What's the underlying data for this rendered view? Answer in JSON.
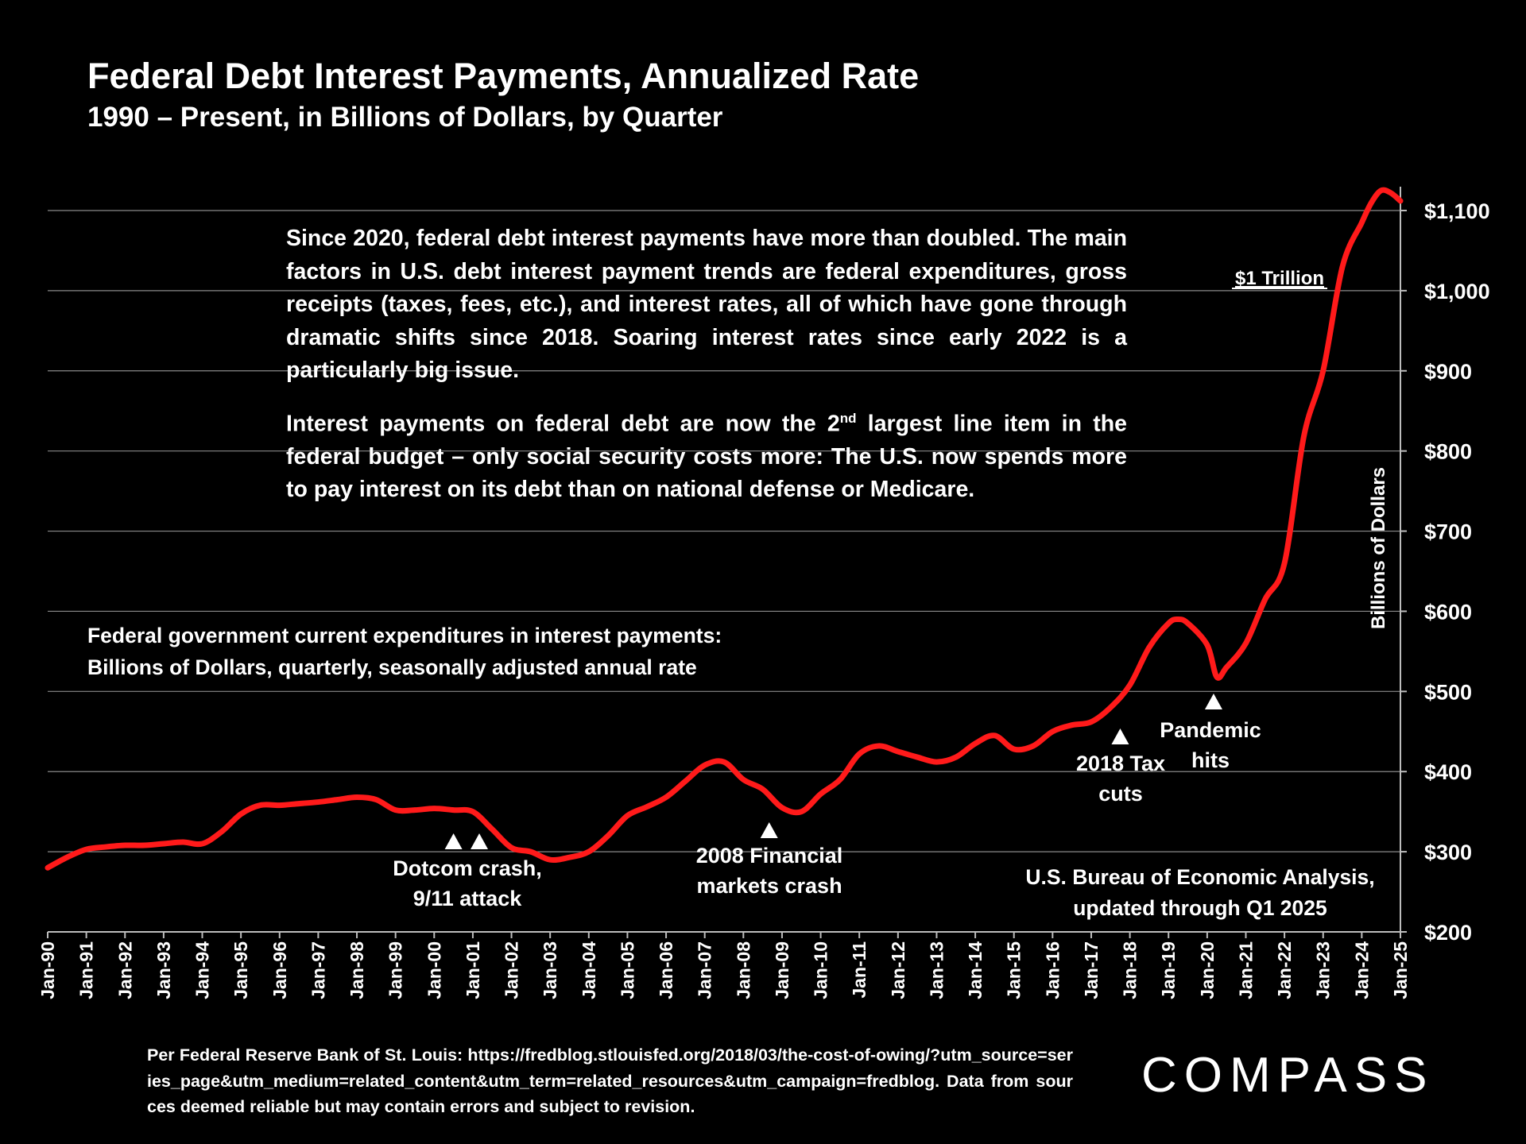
{
  "header": {
    "title": "Federal Debt Interest Payments, Annualized Rate",
    "subtitle": "1990 – Present, in Billions of Dollars, by Quarter"
  },
  "commentary": {
    "para1": "Since 2020, federal debt interest payments have more than doubled. The main factors in U.S. debt interest payment trends are federal expenditures, gross receipts (taxes, fees, etc.), and interest rates, all of which have gone through dramatic shifts since 2018. Soaring interest rates since early 2022 is a particularly big issue.",
    "para2_before": "Interest payments on federal debt are now the 2",
    "para2_sup": "nd",
    "para2_after": " largest line item in the federal budget – only social security costs more: The U.S. now spends more to pay interest on its debt than on national defense or Medicare."
  },
  "series_description": {
    "line1": "Federal government current expenditures in interest payments:",
    "line2": "Billions of Dollars, quarterly, seasonally adjusted annual rate"
  },
  "source": {
    "line1": "U.S. Bureau of Economic Analysis,",
    "line2": "updated through Q1 2025"
  },
  "footnote": "Per Federal Reserve Bank of St. Louis: https://fredblog.stlouisfed.org/2018/03/the-cost-of-owing/?utm_source=series_page&utm_medium=related_content&utm_term=related_resources&utm_campaign=fredblog. Data from sources deemed reliable but may contain errors and subject to revision.",
  "logo": {
    "text": "COMPASS"
  },
  "colors": {
    "background": "#000000",
    "line": "#ff1a1a",
    "text": "#ffffff",
    "grid": "#8a8a8a"
  },
  "chart_data": {
    "type": "line",
    "title": "Federal Debt Interest Payments, Annualized Rate",
    "subtitle": "1990 – Present, in Billions of Dollars, by Quarter",
    "ylabel": "Billions of Dollars",
    "y_axis_position": "right",
    "ylim": [
      200,
      1150
    ],
    "y_ticks": [
      200,
      300,
      400,
      500,
      600,
      700,
      800,
      900,
      1000,
      1100
    ],
    "y_tick_labels": [
      "$200",
      "$300",
      "$400",
      "$500",
      "$600",
      "$700",
      "$800",
      "$900",
      "$1,000",
      "$1,100"
    ],
    "x_tick_labels": [
      "Jan-90",
      "Jan-91",
      "Jan-92",
      "Jan-93",
      "Jan-94",
      "Jan-95",
      "Jan-96",
      "Jan-97",
      "Jan-98",
      "Jan-99",
      "Jan-00",
      "Jan-01",
      "Jan-02",
      "Jan-03",
      "Jan-04",
      "Jan-05",
      "Jan-06",
      "Jan-07",
      "Jan-08",
      "Jan-09",
      "Jan-10",
      "Jan-11",
      "Jan-12",
      "Jan-13",
      "Jan-14",
      "Jan-15",
      "Jan-16",
      "Jan-17",
      "Jan-18",
      "Jan-19",
      "Jan-20",
      "Jan-21",
      "Jan-22",
      "Jan-23",
      "Jan-24",
      "Jan-25"
    ],
    "grid": "horizontal",
    "series": [
      {
        "name": "",
        "x": [
          "1990-01",
          "1990-07",
          "1991-01",
          "1991-07",
          "1992-01",
          "1992-07",
          "1993-01",
          "1993-07",
          "1994-01",
          "1994-07",
          "1995-01",
          "1995-07",
          "1996-01",
          "1996-07",
          "1997-01",
          "1997-07",
          "1998-01",
          "1998-07",
          "1999-01",
          "1999-07",
          "2000-01",
          "2000-07",
          "2001-01",
          "2001-07",
          "2002-01",
          "2002-07",
          "2003-01",
          "2003-07",
          "2004-01",
          "2004-07",
          "2005-01",
          "2005-07",
          "2006-01",
          "2006-07",
          "2007-01",
          "2007-07",
          "2008-01",
          "2008-07",
          "2009-01",
          "2009-07",
          "2010-01",
          "2010-07",
          "2011-01",
          "2011-07",
          "2012-01",
          "2012-07",
          "2013-01",
          "2013-07",
          "2014-01",
          "2014-07",
          "2015-01",
          "2015-07",
          "2016-01",
          "2016-07",
          "2017-01",
          "2017-07",
          "2018-01",
          "2018-07",
          "2019-01",
          "2019-04",
          "2019-07",
          "2020-01",
          "2020-04",
          "2020-07",
          "2021-01",
          "2021-07",
          "2022-01",
          "2022-07",
          "2023-01",
          "2023-07",
          "2024-01",
          "2024-04",
          "2024-07",
          "2024-10",
          "2025-01"
        ],
        "values": [
          280,
          293,
          303,
          306,
          308,
          308,
          310,
          312,
          310,
          325,
          347,
          358,
          358,
          360,
          362,
          365,
          368,
          365,
          352,
          352,
          354,
          352,
          350,
          328,
          305,
          300,
          290,
          293,
          300,
          320,
          345,
          356,
          368,
          388,
          408,
          412,
          390,
          378,
          355,
          350,
          372,
          390,
          422,
          432,
          425,
          418,
          412,
          418,
          435,
          445,
          428,
          432,
          450,
          458,
          462,
          480,
          508,
          555,
          585,
          590,
          585,
          558,
          518,
          530,
          560,
          615,
          660,
          818,
          900,
          1030,
          1085,
          1110,
          1125,
          1122,
          1112
        ]
      }
    ],
    "annotations": [
      {
        "label": "$1 Trillion",
        "x": "2021-07",
        "y": 1015
      },
      {
        "label_line1": "Dotcom crash,",
        "label_line2": "9/11 attack",
        "markers_x": [
          "2000-07",
          "2001-03"
        ]
      },
      {
        "label_line1": "2008 Financial",
        "label_line2": "markets crash",
        "markers_x": [
          "2008-09"
        ]
      },
      {
        "label_line1": "2018 Tax",
        "label_line2": "cuts",
        "markers_x": [
          "2017-10"
        ]
      },
      {
        "label_line1": "Pandemic",
        "label_line2": "hits",
        "markers_x": [
          "2020-03"
        ]
      }
    ]
  }
}
